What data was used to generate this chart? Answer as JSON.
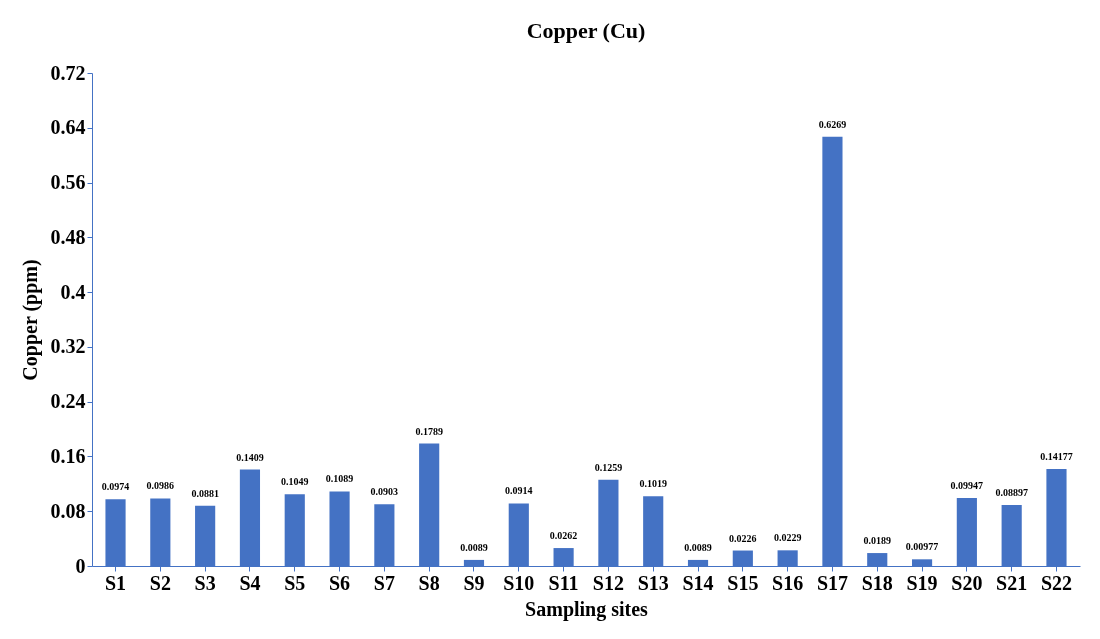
{
  "chart_data": {
    "type": "bar",
    "title": "Copper (Cu)",
    "xlabel": "Sampling sites",
    "ylabel": "Copper (ppm)",
    "categories": [
      "S1",
      "S2",
      "S3",
      "S4",
      "S5",
      "S6",
      "S7",
      "S8",
      "S9",
      "S10",
      "S11",
      "S12",
      "S13",
      "S14",
      "S15",
      "S16",
      "S17",
      "S18",
      "S19",
      "S20",
      "S21",
      "S22"
    ],
    "values": [
      0.0974,
      0.0986,
      0.0881,
      0.1409,
      0.1049,
      0.1089,
      0.0903,
      0.1789,
      0.0089,
      0.0914,
      0.0262,
      0.1259,
      0.1019,
      0.0089,
      0.0226,
      0.0229,
      0.6269,
      0.0189,
      0.00977,
      0.09947,
      0.08897,
      0.14177
    ],
    "color": "#4472c4",
    "ylim": [
      0,
      0.72
    ],
    "yticks": [
      0,
      0.08,
      0.16,
      0.24,
      0.32,
      0.4,
      0.48,
      0.56,
      0.64,
      0.72
    ],
    "data_labels": true,
    "grid": false
  }
}
